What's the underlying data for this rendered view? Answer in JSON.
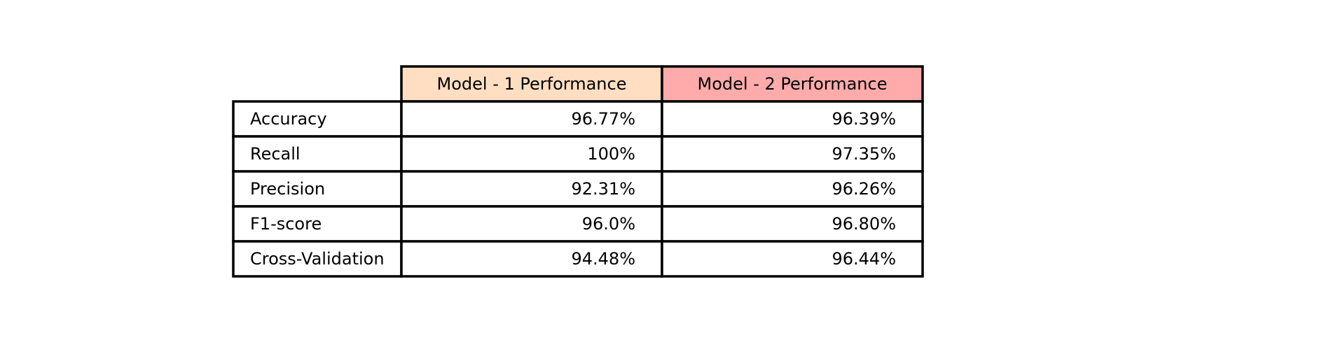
{
  "chart_data": {
    "type": "table",
    "columns": [
      "Model - 1 Performance",
      "Model - 2 Performance"
    ],
    "header_colors": [
      "#ffdec2",
      "#ffabab"
    ],
    "rows": [
      {
        "label": "Accuracy",
        "values": [
          "96.77%",
          "96.39%"
        ]
      },
      {
        "label": "Recall",
        "values": [
          "100%",
          "97.35%"
        ]
      },
      {
        "label": "Precision",
        "values": [
          "92.31%",
          "96.26%"
        ]
      },
      {
        "label": "F1-score",
        "values": [
          "96.0%",
          "96.80%"
        ]
      },
      {
        "label": "Cross-Validation",
        "values": [
          "94.48%",
          "96.44%"
        ]
      }
    ]
  }
}
